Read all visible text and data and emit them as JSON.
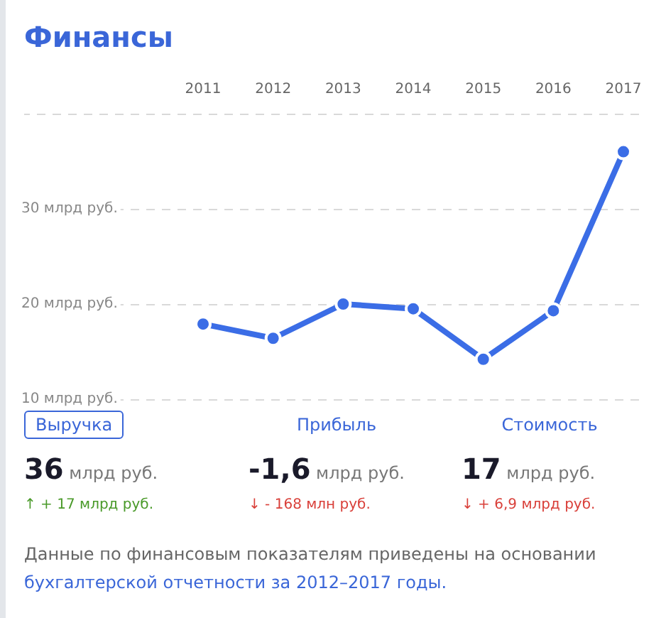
{
  "chart_data": {
    "type": "line",
    "title": "Финансы",
    "categories": [
      "2011",
      "2012",
      "2013",
      "2014",
      "2015",
      "2016",
      "2017"
    ],
    "values": [
      17.9,
      16.4,
      20,
      19.5,
      14.2,
      19.3,
      36
    ],
    "color": "#3b6de6",
    "marker": "circle",
    "grid": "y",
    "ylim": [
      10,
      40
    ],
    "yticks": [
      {
        "value": 10,
        "label": "10 млрд руб."
      },
      {
        "value": 20,
        "label": "20 млрд руб."
      },
      {
        "value": 30,
        "label": "30 млрд руб."
      },
      {
        "value": 40,
        "label": null
      }
    ],
    "annotations": [
      "Выручка",
      "Прибыль",
      "Стоимость",
      "36 млрд руб.",
      "-1,6 млрд руб.",
      "17 млрд руб.",
      "↑ + 17 млрд руб.",
      "↓ - 168 млн руб.",
      "↓ + 6,9 млрд руб.",
      "Данные по финансовым показателям приведены на основании",
      "бухгалтерской отчетности за 2012–2017 годы."
    ]
  }
}
